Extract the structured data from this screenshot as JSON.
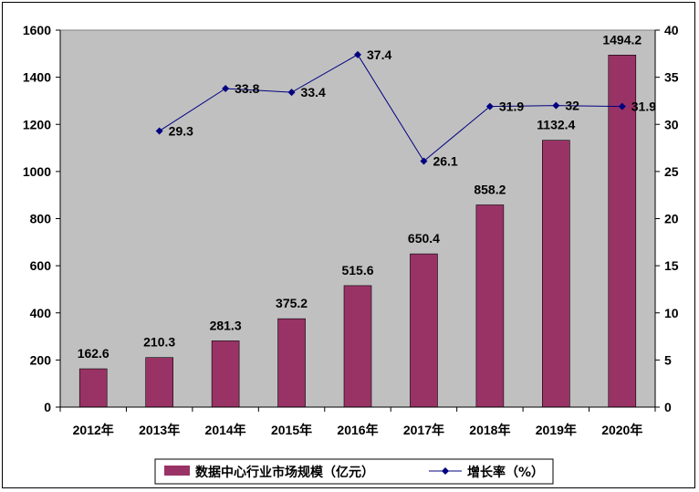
{
  "chart_data": {
    "type": "bar",
    "categories": [
      "2012年",
      "2013年",
      "2014年",
      "2015年",
      "2016年",
      "2017年",
      "2018年",
      "2019年",
      "2020年"
    ],
    "series": [
      {
        "name": "数据中心行业市场规模（亿元）",
        "type": "bar",
        "axis": "left",
        "color": "#993366",
        "values": [
          162.6,
          210.3,
          281.3,
          375.2,
          515.6,
          650.4,
          858.2,
          1132.4,
          1494.2
        ],
        "labels": [
          "162.6",
          "210.3",
          "281.3",
          "375.2",
          "515.6",
          "650.4",
          "858.2",
          "1132.4",
          "1494.2"
        ]
      },
      {
        "name": "增长率（%）",
        "type": "line",
        "axis": "right",
        "color": "#000080",
        "values": [
          null,
          29.3,
          33.8,
          33.4,
          37.4,
          26.1,
          31.9,
          32,
          31.9
        ],
        "labels": [
          "",
          "29.3",
          "33.8",
          "33.4",
          "37.4",
          "26.1",
          "31.9",
          "32",
          "31.9"
        ]
      }
    ],
    "ylim": [
      0,
      1600
    ],
    "yticks": [
      "0",
      "200",
      "400",
      "600",
      "800",
      "1000",
      "1200",
      "1400",
      "1600"
    ],
    "y2lim": [
      0,
      40
    ],
    "y2ticks": [
      "0",
      "5",
      "10",
      "15",
      "20",
      "25",
      "30",
      "35",
      "40"
    ],
    "plot_background": "#c0c0c0",
    "grid": false,
    "legend_position": "bottom"
  }
}
